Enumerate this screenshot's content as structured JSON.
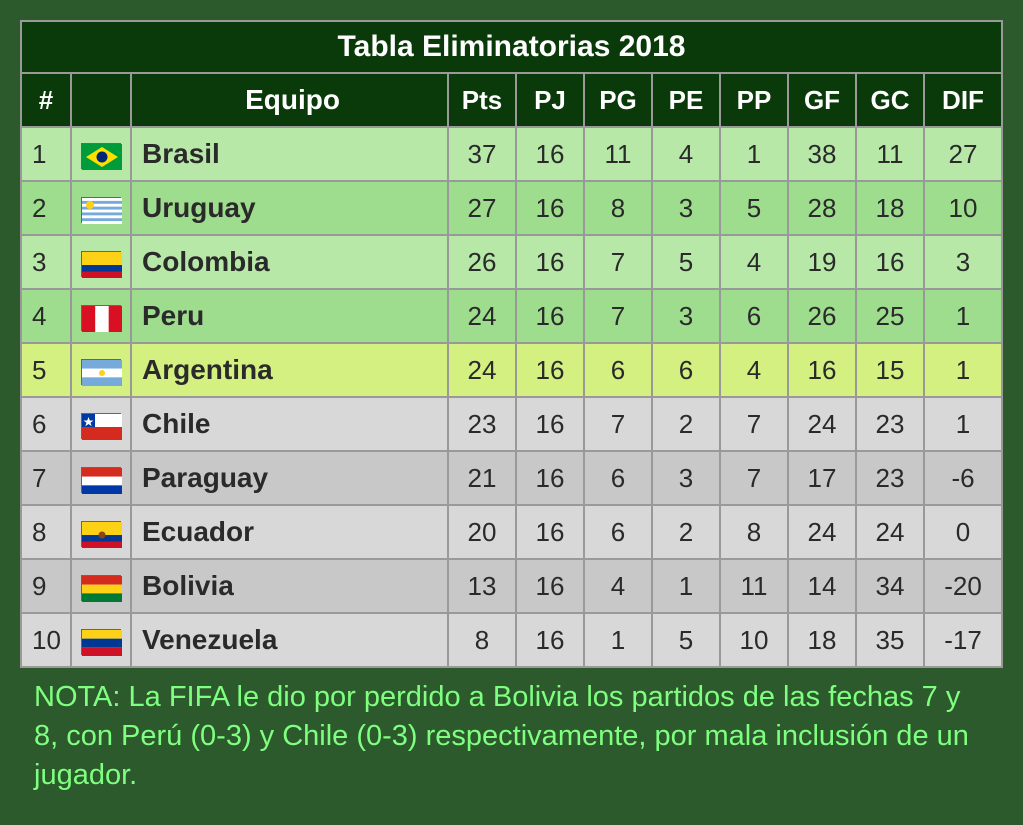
{
  "title": "Tabla Eliminatorias 2018",
  "columns": [
    "#",
    "",
    "Equipo",
    "Pts",
    "PJ",
    "PG",
    "PE",
    "PP",
    "GF",
    "GC",
    "DIF"
  ],
  "colors": {
    "header_bg": "#0a3a0a",
    "header_fg": "#ffffff",
    "green_odd": "#b8e8a8",
    "green_even": "#9edd8e",
    "yellow": "#d4f080",
    "grey_odd": "#d8d8d8",
    "grey_even": "#c8c8c8",
    "border": "#999999",
    "page_bg": "#2d5a2d",
    "note_color": "#7fff7f",
    "text": "#2a2a2a"
  },
  "rows": [
    {
      "rank": "1",
      "flag": "br",
      "team": "Brasil",
      "pts": "37",
      "pj": "16",
      "pg": "11",
      "pe": "4",
      "pp": "1",
      "gf": "38",
      "gc": "11",
      "dif": "27",
      "zone": "green-odd"
    },
    {
      "rank": "2",
      "flag": "uy",
      "team": "Uruguay",
      "pts": "27",
      "pj": "16",
      "pg": "8",
      "pe": "3",
      "pp": "5",
      "gf": "28",
      "gc": "18",
      "dif": "10",
      "zone": "green-even"
    },
    {
      "rank": "3",
      "flag": "co",
      "team": "Colombia",
      "pts": "26",
      "pj": "16",
      "pg": "7",
      "pe": "5",
      "pp": "4",
      "gf": "19",
      "gc": "16",
      "dif": "3",
      "zone": "green-odd"
    },
    {
      "rank": "4",
      "flag": "pe",
      "team": "Peru",
      "pts": "24",
      "pj": "16",
      "pg": "7",
      "pe": "3",
      "pp": "6",
      "gf": "26",
      "gc": "25",
      "dif": "1",
      "zone": "green-even"
    },
    {
      "rank": "5",
      "flag": "ar",
      "team": "Argentina",
      "pts": "24",
      "pj": "16",
      "pg": "6",
      "pe": "6",
      "pp": "4",
      "gf": "16",
      "gc": "15",
      "dif": "1",
      "zone": "yellow"
    },
    {
      "rank": "6",
      "flag": "cl",
      "team": "Chile",
      "pts": "23",
      "pj": "16",
      "pg": "7",
      "pe": "2",
      "pp": "7",
      "gf": "24",
      "gc": "23",
      "dif": "1",
      "zone": "grey-odd"
    },
    {
      "rank": "7",
      "flag": "py",
      "team": "Paraguay",
      "pts": "21",
      "pj": "16",
      "pg": "6",
      "pe": "3",
      "pp": "7",
      "gf": "17",
      "gc": "23",
      "dif": "-6",
      "zone": "grey-even"
    },
    {
      "rank": "8",
      "flag": "ec",
      "team": "Ecuador",
      "pts": "20",
      "pj": "16",
      "pg": "6",
      "pe": "2",
      "pp": "8",
      "gf": "24",
      "gc": "24",
      "dif": "0",
      "zone": "grey-odd"
    },
    {
      "rank": "9",
      "flag": "bo",
      "team": "Bolivia",
      "pts": "13",
      "pj": "16",
      "pg": "4",
      "pe": "1",
      "pp": "11",
      "gf": "14",
      "gc": "34",
      "dif": "-20",
      "zone": "grey-even"
    },
    {
      "rank": "10",
      "flag": "ve",
      "team": "Venezuela",
      "pts": "8",
      "pj": "16",
      "pg": "1",
      "pe": "5",
      "pp": "10",
      "gf": "18",
      "gc": "35",
      "dif": "-17",
      "zone": "grey-odd"
    }
  ],
  "note": "NOTA: La FIFA le dio por perdido a Bolivia los partidos de las fechas 7 y 8, con Perú (0-3) y Chile (0-3) respectivamente, por mala inclusión de un jugador.",
  "flags": {
    "br": [
      {
        "bg": "#009b3a"
      },
      {
        "type": "diamond",
        "fill": "#fedf00"
      },
      {
        "type": "circle",
        "fill": "#002776"
      }
    ],
    "uy": [
      {
        "bg": "#fff"
      },
      {
        "type": "stripes",
        "fill": "#75aadb",
        "count": 4
      },
      {
        "type": "sun",
        "fill": "#fcd116"
      }
    ],
    "co": [
      {
        "type": "hbands",
        "bands": [
          {
            "fill": "#fcd116",
            "h": 0.5
          },
          {
            "fill": "#003893",
            "h": 0.25
          },
          {
            "fill": "#ce1126",
            "h": 0.25
          }
        ]
      }
    ],
    "pe": [
      {
        "type": "vbands",
        "bands": [
          {
            "fill": "#d91023",
            "w": 0.333
          },
          {
            "fill": "#fff",
            "w": 0.334
          },
          {
            "fill": "#d91023",
            "w": 0.333
          }
        ]
      }
    ],
    "ar": [
      {
        "type": "hbands",
        "bands": [
          {
            "fill": "#75aadb",
            "h": 0.333
          },
          {
            "fill": "#fff",
            "h": 0.334
          },
          {
            "fill": "#75aadb",
            "h": 0.333
          }
        ]
      },
      {
        "type": "sun",
        "fill": "#fcd116",
        "small": true
      }
    ],
    "cl": [
      {
        "type": "chile"
      }
    ],
    "py": [
      {
        "type": "hbands",
        "bands": [
          {
            "fill": "#d52b1e",
            "h": 0.333
          },
          {
            "fill": "#fff",
            "h": 0.334
          },
          {
            "fill": "#0038a8",
            "h": 0.333
          }
        ]
      }
    ],
    "ec": [
      {
        "type": "hbands",
        "bands": [
          {
            "fill": "#fcd116",
            "h": 0.5
          },
          {
            "fill": "#003893",
            "h": 0.25
          },
          {
            "fill": "#ce1126",
            "h": 0.25
          }
        ]
      },
      {
        "type": "circle",
        "fill": "#8b4513",
        "small": true
      }
    ],
    "bo": [
      {
        "type": "hbands",
        "bands": [
          {
            "fill": "#d52b1e",
            "h": 0.333
          },
          {
            "fill": "#fcd116",
            "h": 0.334
          },
          {
            "fill": "#007934",
            "h": 0.333
          }
        ]
      }
    ],
    "ve": [
      {
        "type": "hbands",
        "bands": [
          {
            "fill": "#fcd116",
            "h": 0.333
          },
          {
            "fill": "#003893",
            "h": 0.334
          },
          {
            "fill": "#ce1126",
            "h": 0.333
          }
        ]
      }
    ]
  }
}
